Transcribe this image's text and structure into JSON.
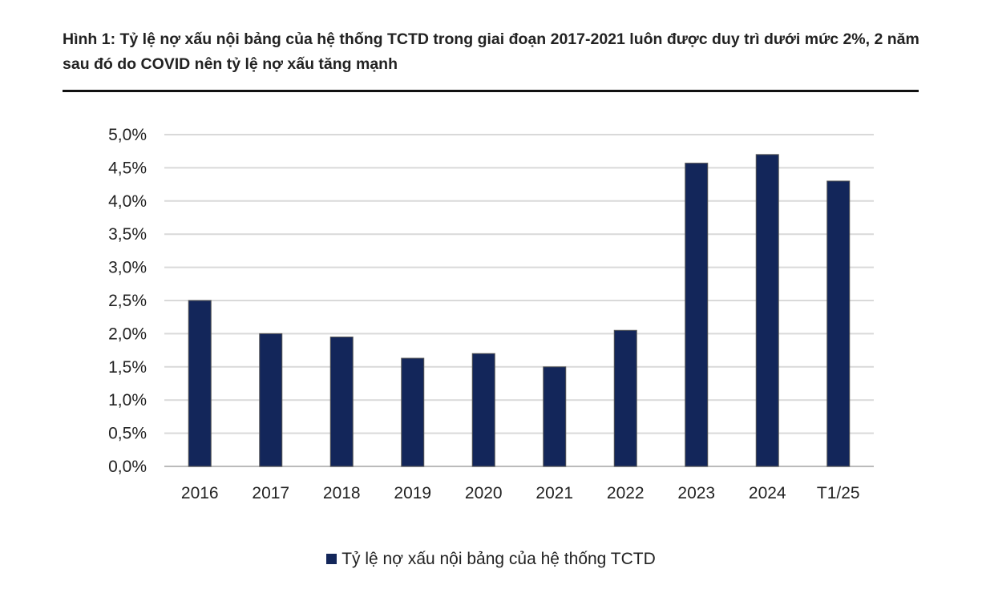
{
  "title": "Hình 1:  Tỷ lệ nợ xấu nội bảng của hệ thống TCTD trong giai đoạn 2017-2021 luôn được duy trì dưới mức 2%, 2 năm sau đó do COVID nên tỷ lệ nợ xấu tăng mạnh",
  "chart_data": {
    "type": "bar",
    "title": "",
    "xlabel": "",
    "ylabel": "",
    "categories": [
      "2016",
      "2017",
      "2018",
      "2019",
      "2020",
      "2021",
      "2022",
      "2023",
      "2024",
      "T1/25"
    ],
    "series": [
      {
        "name": "Tỷ lệ nợ xấu nội bảng của hệ thống TCTD",
        "values": [
          2.5,
          2.0,
          1.95,
          1.63,
          1.7,
          1.5,
          2.05,
          4.57,
          4.7,
          4.3
        ],
        "color": "#13265a"
      }
    ],
    "ylim": [
      0,
      5
    ],
    "yticks": [
      "0,0%",
      "0,5%",
      "1,0%",
      "1,5%",
      "2,0%",
      "2,5%",
      "3,0%",
      "3,5%",
      "4,0%",
      "4,5%",
      "5,0%"
    ],
    "grid": true,
    "legend_position": "bottom"
  }
}
